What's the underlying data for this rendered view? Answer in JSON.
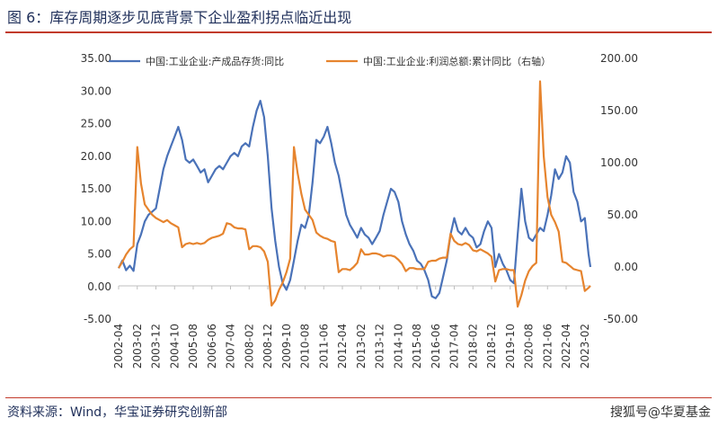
{
  "figure": {
    "title": "图 6：库存周期逐步见底背景下企业盈利拐点临近出现",
    "source": "资料来源：Wind，华宝证券研究创新部",
    "watermark": "搜狐号@华夏基金"
  },
  "colors": {
    "inventory": "#4a72b8",
    "profit": "#e6842e",
    "accent": "#c23a2b",
    "text": "#1f2f5a"
  },
  "chart_data": {
    "type": "line",
    "x_ticks": [
      "2002-04",
      "2003-02",
      "2003-12",
      "2004-10",
      "2005-08",
      "2006-06",
      "2007-04",
      "2008-02",
      "2008-12",
      "2009-10",
      "2010-08",
      "2011-06",
      "2012-04",
      "2013-02",
      "2013-12",
      "2014-10",
      "2015-08",
      "2016-06",
      "2017-04",
      "2018-02",
      "2018-12",
      "2019-10",
      "2020-08",
      "2021-06",
      "2022-04",
      "2023-02"
    ],
    "y_left": {
      "ticks": [
        "35.00",
        "30.00",
        "25.00",
        "20.00",
        "15.00",
        "10.00",
        "5.00",
        "0.00",
        "-5.00"
      ],
      "lim": [
        -5,
        35
      ]
    },
    "y_right": {
      "ticks": [
        "200.00",
        "150.00",
        "100.00",
        "50.00",
        "0.00",
        "-50.00"
      ],
      "lim": [
        -50,
        200
      ]
    },
    "grid": false,
    "legend_position": "top",
    "series": [
      {
        "name": "中国:工业企业:产成品存货:同比",
        "axis": "left",
        "points": [
          [
            "2002-04",
            2.8
          ],
          [
            "2002-06",
            4.0
          ],
          [
            "2002-08",
            2.5
          ],
          [
            "2002-10",
            3.2
          ],
          [
            "2002-12",
            2.4
          ],
          [
            "2003-02",
            6.5
          ],
          [
            "2003-04",
            8.0
          ],
          [
            "2003-06",
            10.0
          ],
          [
            "2003-08",
            11.0
          ],
          [
            "2003-10",
            11.5
          ],
          [
            "2003-12",
            12.0
          ],
          [
            "2004-02",
            15.0
          ],
          [
            "2004-04",
            18.0
          ],
          [
            "2004-06",
            20.0
          ],
          [
            "2004-08",
            21.5
          ],
          [
            "2004-10",
            23.0
          ],
          [
            "2004-12",
            24.5
          ],
          [
            "2005-02",
            22.5
          ],
          [
            "2005-04",
            19.5
          ],
          [
            "2005-06",
            19.0
          ],
          [
            "2005-08",
            19.5
          ],
          [
            "2005-10",
            18.5
          ],
          [
            "2005-12",
            17.5
          ],
          [
            "2006-02",
            18.0
          ],
          [
            "2006-04",
            16.0
          ],
          [
            "2006-06",
            17.0
          ],
          [
            "2006-08",
            18.0
          ],
          [
            "2006-10",
            18.5
          ],
          [
            "2006-12",
            18.0
          ],
          [
            "2007-02",
            19.0
          ],
          [
            "2007-04",
            20.0
          ],
          [
            "2007-06",
            20.5
          ],
          [
            "2007-08",
            20.0
          ],
          [
            "2007-10",
            21.5
          ],
          [
            "2007-12",
            22.0
          ],
          [
            "2008-02",
            21.5
          ],
          [
            "2008-04",
            24.5
          ],
          [
            "2008-06",
            27.0
          ],
          [
            "2008-08",
            28.5
          ],
          [
            "2008-10",
            26.0
          ],
          [
            "2008-12",
            20.0
          ],
          [
            "2009-02",
            12.0
          ],
          [
            "2009-04",
            7.0
          ],
          [
            "2009-06",
            3.0
          ],
          [
            "2009-08",
            0.5
          ],
          [
            "2009-10",
            -0.5
          ],
          [
            "2009-12",
            1.0
          ],
          [
            "2010-02",
            4.0
          ],
          [
            "2010-04",
            7.0
          ],
          [
            "2010-06",
            9.5
          ],
          [
            "2010-08",
            9.0
          ],
          [
            "2010-10",
            11.0
          ],
          [
            "2010-12",
            16.0
          ],
          [
            "2011-02",
            22.5
          ],
          [
            "2011-04",
            22.0
          ],
          [
            "2011-06",
            23.0
          ],
          [
            "2011-08",
            24.5
          ],
          [
            "2011-10",
            22.0
          ],
          [
            "2011-12",
            19.0
          ],
          [
            "2012-02",
            17.0
          ],
          [
            "2012-04",
            14.0
          ],
          [
            "2012-06",
            11.0
          ],
          [
            "2012-08",
            9.5
          ],
          [
            "2012-10",
            8.5
          ],
          [
            "2012-12",
            7.5
          ],
          [
            "2013-02",
            9.0
          ],
          [
            "2013-04",
            8.0
          ],
          [
            "2013-06",
            7.5
          ],
          [
            "2013-08",
            6.5
          ],
          [
            "2013-10",
            7.5
          ],
          [
            "2013-12",
            8.5
          ],
          [
            "2014-02",
            11.0
          ],
          [
            "2014-04",
            13.0
          ],
          [
            "2014-06",
            15.0
          ],
          [
            "2014-08",
            14.5
          ],
          [
            "2014-10",
            13.0
          ],
          [
            "2014-12",
            10.0
          ],
          [
            "2015-02",
            8.0
          ],
          [
            "2015-04",
            6.5
          ],
          [
            "2015-06",
            5.5
          ],
          [
            "2015-08",
            4.0
          ],
          [
            "2015-10",
            3.5
          ],
          [
            "2015-12",
            2.5
          ],
          [
            "2016-02",
            1.0
          ],
          [
            "2016-04",
            -1.5
          ],
          [
            "2016-06",
            -1.8
          ],
          [
            "2016-08",
            -1.0
          ],
          [
            "2016-10",
            1.5
          ],
          [
            "2016-12",
            4.0
          ],
          [
            "2017-02",
            8.0
          ],
          [
            "2017-04",
            10.5
          ],
          [
            "2017-06",
            8.5
          ],
          [
            "2017-08",
            8.0
          ],
          [
            "2017-10",
            9.0
          ],
          [
            "2017-12",
            8.0
          ],
          [
            "2018-02",
            7.5
          ],
          [
            "2018-04",
            6.0
          ],
          [
            "2018-06",
            6.5
          ],
          [
            "2018-08",
            8.5
          ],
          [
            "2018-10",
            10.0
          ],
          [
            "2018-12",
            9.0
          ],
          [
            "2019-02",
            3.0
          ],
          [
            "2019-04",
            5.0
          ],
          [
            "2019-06",
            3.5
          ],
          [
            "2019-08",
            2.5
          ],
          [
            "2019-10",
            1.0
          ],
          [
            "2019-12",
            0.5
          ],
          [
            "2020-02",
            8.0
          ],
          [
            "2020-04",
            15.0
          ],
          [
            "2020-06",
            10.0
          ],
          [
            "2020-08",
            7.5
          ],
          [
            "2020-10",
            7.0
          ],
          [
            "2020-12",
            8.0
          ],
          [
            "2021-02",
            9.0
          ],
          [
            "2021-04",
            8.5
          ],
          [
            "2021-06",
            11.0
          ],
          [
            "2021-08",
            14.0
          ],
          [
            "2021-10",
            18.0
          ],
          [
            "2021-12",
            16.5
          ],
          [
            "2022-02",
            17.5
          ],
          [
            "2022-04",
            20.0
          ],
          [
            "2022-06",
            19.0
          ],
          [
            "2022-08",
            14.5
          ],
          [
            "2022-10",
            13.0
          ],
          [
            "2022-12",
            10.0
          ],
          [
            "2023-02",
            10.5
          ],
          [
            "2023-04",
            5.0
          ],
          [
            "2023-05",
            3.0
          ]
        ]
      },
      {
        "name": "中国:工业企业:利润总额:累计同比（右轴）",
        "axis": "right",
        "points": [
          [
            "2002-04",
            -1
          ],
          [
            "2002-06",
            5
          ],
          [
            "2002-08",
            12
          ],
          [
            "2002-10",
            17
          ],
          [
            "2002-12",
            20
          ],
          [
            "2003-02",
            115
          ],
          [
            "2003-04",
            80
          ],
          [
            "2003-06",
            60
          ],
          [
            "2003-08",
            55
          ],
          [
            "2003-10",
            50
          ],
          [
            "2003-12",
            47
          ],
          [
            "2004-02",
            45
          ],
          [
            "2004-04",
            43
          ],
          [
            "2004-06",
            45
          ],
          [
            "2004-08",
            42
          ],
          [
            "2004-10",
            40
          ],
          [
            "2004-12",
            38
          ],
          [
            "2005-02",
            19
          ],
          [
            "2005-04",
            22
          ],
          [
            "2005-06",
            23
          ],
          [
            "2005-08",
            22
          ],
          [
            "2005-10",
            23
          ],
          [
            "2005-12",
            22
          ],
          [
            "2006-02",
            23
          ],
          [
            "2006-04",
            26
          ],
          [
            "2006-06",
            28
          ],
          [
            "2006-08",
            29
          ],
          [
            "2006-10",
            30
          ],
          [
            "2006-12",
            32
          ],
          [
            "2007-02",
            42
          ],
          [
            "2007-04",
            41
          ],
          [
            "2007-06",
            38
          ],
          [
            "2007-08",
            37
          ],
          [
            "2007-10",
            37
          ],
          [
            "2007-12",
            36
          ],
          [
            "2008-02",
            17
          ],
          [
            "2008-04",
            20
          ],
          [
            "2008-06",
            20
          ],
          [
            "2008-08",
            19
          ],
          [
            "2008-10",
            15
          ],
          [
            "2008-12",
            5
          ],
          [
            "2009-02",
            -37
          ],
          [
            "2009-04",
            -32
          ],
          [
            "2009-06",
            -22
          ],
          [
            "2009-08",
            -15
          ],
          [
            "2009-10",
            -5
          ],
          [
            "2009-12",
            8
          ],
          [
            "2010-02",
            115
          ],
          [
            "2010-04",
            90
          ],
          [
            "2010-06",
            70
          ],
          [
            "2010-08",
            55
          ],
          [
            "2010-10",
            50
          ],
          [
            "2010-12",
            45
          ],
          [
            "2011-02",
            33
          ],
          [
            "2011-04",
            30
          ],
          [
            "2011-06",
            28
          ],
          [
            "2011-08",
            27
          ],
          [
            "2011-10",
            25
          ],
          [
            "2011-12",
            24
          ],
          [
            "2012-02",
            -5
          ],
          [
            "2012-04",
            -2
          ],
          [
            "2012-06",
            -2
          ],
          [
            "2012-08",
            -3
          ],
          [
            "2012-10",
            0
          ],
          [
            "2012-12",
            4
          ],
          [
            "2013-02",
            17
          ],
          [
            "2013-04",
            12
          ],
          [
            "2013-06",
            12
          ],
          [
            "2013-08",
            13
          ],
          [
            "2013-10",
            13
          ],
          [
            "2013-12",
            12
          ],
          [
            "2014-02",
            10
          ],
          [
            "2014-04",
            11
          ],
          [
            "2014-06",
            11
          ],
          [
            "2014-08",
            10
          ],
          [
            "2014-10",
            7
          ],
          [
            "2014-12",
            3
          ],
          [
            "2015-02",
            -4
          ],
          [
            "2015-04",
            -1
          ],
          [
            "2015-06",
            -1
          ],
          [
            "2015-08",
            -2
          ],
          [
            "2015-10",
            -2
          ],
          [
            "2015-12",
            -2
          ],
          [
            "2016-02",
            5
          ],
          [
            "2016-04",
            6
          ],
          [
            "2016-06",
            6
          ],
          [
            "2016-08",
            8
          ],
          [
            "2016-10",
            9
          ],
          [
            "2016-12",
            9
          ],
          [
            "2017-02",
            32
          ],
          [
            "2017-04",
            25
          ],
          [
            "2017-06",
            22
          ],
          [
            "2017-08",
            21
          ],
          [
            "2017-10",
            23
          ],
          [
            "2017-12",
            21
          ],
          [
            "2018-02",
            16
          ],
          [
            "2018-04",
            15
          ],
          [
            "2018-06",
            17
          ],
          [
            "2018-08",
            15
          ],
          [
            "2018-10",
            13
          ],
          [
            "2018-12",
            10
          ],
          [
            "2019-02",
            -14
          ],
          [
            "2019-04",
            -3
          ],
          [
            "2019-06",
            -2
          ],
          [
            "2019-08",
            -2
          ],
          [
            "2019-10",
            -3
          ],
          [
            "2019-12",
            -3
          ],
          [
            "2020-02",
            -38
          ],
          [
            "2020-04",
            -27
          ],
          [
            "2020-06",
            -13
          ],
          [
            "2020-08",
            -4
          ],
          [
            "2020-10",
            1
          ],
          [
            "2020-12",
            4
          ],
          [
            "2021-02",
            178
          ],
          [
            "2021-04",
            106
          ],
          [
            "2021-06",
            67
          ],
          [
            "2021-08",
            50
          ],
          [
            "2021-10",
            43
          ],
          [
            "2021-12",
            34
          ],
          [
            "2022-02",
            5
          ],
          [
            "2022-04",
            4
          ],
          [
            "2022-06",
            1
          ],
          [
            "2022-08",
            -2
          ],
          [
            "2022-10",
            -3
          ],
          [
            "2022-12",
            -4
          ],
          [
            "2023-02",
            -23
          ],
          [
            "2023-04",
            -20
          ],
          [
            "2023-05",
            -18
          ]
        ]
      }
    ]
  }
}
